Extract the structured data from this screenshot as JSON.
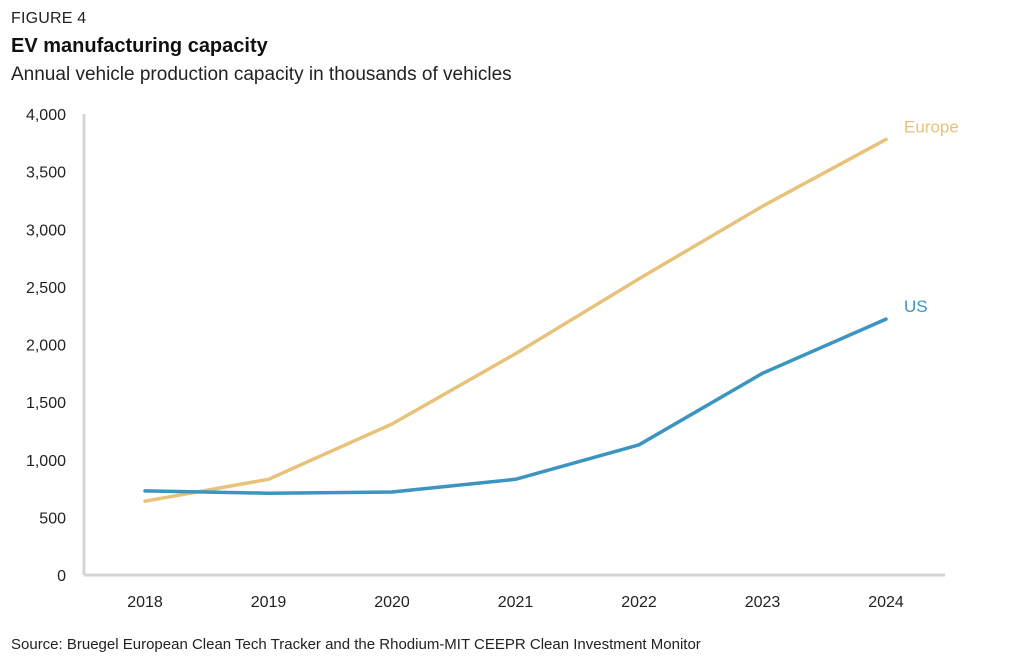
{
  "figure_label": "FIGURE 4",
  "title": "EV manufacturing capacity",
  "subtitle": "Annual vehicle production capacity in thousands of vehicles",
  "source": "Source: Bruegel European Clean Tech Tracker and the Rhodium-MIT CEEPR Clean Investment Monitor",
  "chart_data": {
    "type": "line",
    "title": "EV manufacturing capacity",
    "subtitle": "Annual vehicle production capacity in thousands of vehicles",
    "x": [
      "2018",
      "2019",
      "2020",
      "2021",
      "2022",
      "2023",
      "2024"
    ],
    "ylim": [
      0,
      4000
    ],
    "yticks": [
      0,
      500,
      1000,
      1500,
      2000,
      2500,
      3000,
      3500,
      4000
    ],
    "ytick_labels": [
      "0",
      "500",
      "1,000",
      "1,500",
      "2,000",
      "2,500",
      "3,000",
      "3,500",
      "4,000"
    ],
    "grid": false,
    "legend": "inline labels at line ends",
    "series": [
      {
        "name": "Europe",
        "color": "#e8c27a",
        "values": [
          640,
          830,
          1310,
          1920,
          2570,
          3200,
          3780
        ]
      },
      {
        "name": "US",
        "color": "#3b95c0",
        "values": [
          730,
          710,
          720,
          830,
          1130,
          1750,
          2220
        ]
      }
    ]
  }
}
